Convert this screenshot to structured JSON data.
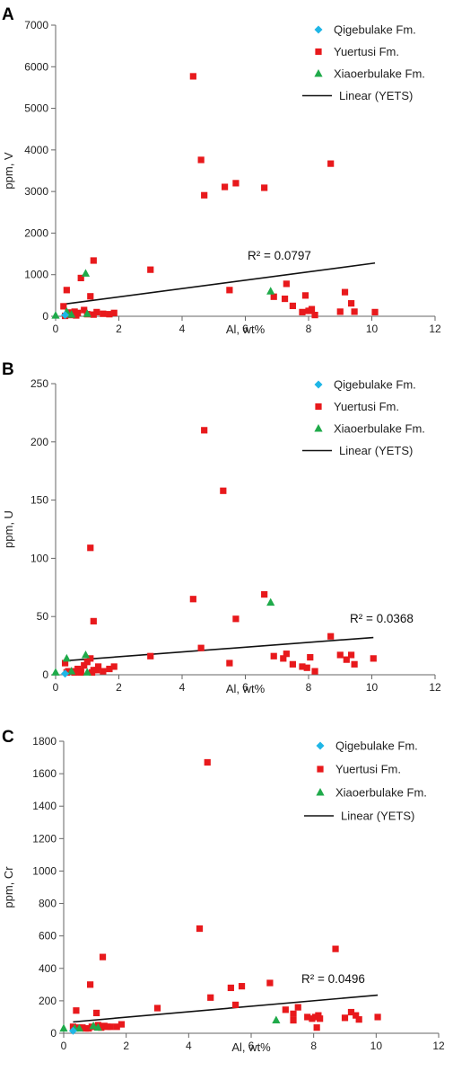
{
  "colors": {
    "qigebulake": "#1fb6e6",
    "yuertusi": "#e8191c",
    "xiaoerbulake": "#1faa4a",
    "trendline": "#111111",
    "axis": "#666666"
  },
  "chart_data": [
    {
      "panel": "A",
      "type": "scatter",
      "xlabel": "Al, wt%",
      "ylabel": "ppm, V",
      "xlim": [
        0,
        12
      ],
      "ylim": [
        0,
        7000
      ],
      "xticks": [
        0,
        2,
        4,
        6,
        8,
        10,
        12
      ],
      "yticks": [
        0,
        1000,
        2000,
        3000,
        4000,
        5000,
        6000,
        7000
      ],
      "grid": false,
      "legend_position": "top-right",
      "legend": [
        "Qigebulake Fm.",
        "Yuertusi Fm.",
        "Xiaoerbulake Fm.",
        "Linear (YETS)"
      ],
      "r2_label": "R² = 0.0797",
      "trendline": {
        "x": [
          0.25,
          10.1
        ],
        "y": [
          290,
          1280
        ]
      },
      "series": [
        {
          "name": "Qigebulake Fm.",
          "marker": "diamond",
          "x": [
            0.3
          ],
          "y": [
            30
          ]
        },
        {
          "name": "Yuertusi Fm.",
          "marker": "square",
          "x": [
            4.35,
            4.6,
            4.7,
            5.35,
            5.7,
            6.6,
            8.7,
            1.2,
            3.0,
            0.35,
            0.25,
            0.4,
            1.1,
            0.8,
            0.5,
            0.6,
            0.7,
            0.9,
            1.0,
            1.3,
            1.5,
            1.7,
            1.85,
            5.5,
            6.9,
            7.3,
            7.5,
            7.8,
            7.9,
            8.0,
            8.1,
            8.2,
            9.0,
            9.15,
            9.35,
            9.45,
            10.1,
            7.25,
            0.45,
            1.2,
            0.65,
            0.3
          ],
          "y": [
            5770,
            3760,
            2910,
            3110,
            3200,
            3090,
            3670,
            1340,
            1120,
            630,
            240,
            90,
            480,
            920,
            60,
            110,
            80,
            150,
            50,
            100,
            60,
            50,
            80,
            630,
            470,
            780,
            250,
            100,
            500,
            130,
            170,
            30,
            110,
            580,
            310,
            110,
            100,
            420,
            30,
            40,
            20,
            10
          ]
        },
        {
          "name": "Xiaoerbulake Fm.",
          "marker": "triangle",
          "x": [
            0.0,
            0.35,
            0.95,
            6.8,
            0.5,
            1.0
          ],
          "y": [
            20,
            110,
            1030,
            600,
            40,
            60
          ]
        }
      ]
    },
    {
      "panel": "B",
      "type": "scatter",
      "xlabel": "Al, wt%",
      "ylabel": "ppm, U",
      "xlim": [
        0,
        12
      ],
      "ylim": [
        0,
        250
      ],
      "xticks": [
        0,
        2,
        4,
        6,
        8,
        10,
        12
      ],
      "yticks": [
        0,
        50,
        100,
        150,
        200,
        250
      ],
      "grid": false,
      "legend_position": "top-right",
      "legend": [
        "Qigebulake Fm.",
        "Yuertusi Fm.",
        "Xiaoerbulake Fm.",
        "Linear (YETS)"
      ],
      "r2_label": "R² = 0.0368",
      "trendline": {
        "x": [
          0.3,
          10.05
        ],
        "y": [
          12,
          32
        ]
      },
      "series": [
        {
          "name": "Qigebulake Fm.",
          "marker": "diamond",
          "x": [
            0.3
          ],
          "y": [
            1
          ]
        },
        {
          "name": "Yuertusi Fm.",
          "marker": "square",
          "x": [
            4.7,
            5.3,
            1.1,
            4.35,
            6.6,
            5.7,
            1.2,
            8.7,
            4.6,
            3.0,
            0.3,
            0.5,
            0.7,
            0.9,
            1.0,
            1.2,
            1.35,
            1.5,
            1.7,
            1.85,
            0.4,
            0.6,
            0.8,
            1.1,
            1.3,
            5.5,
            6.9,
            7.3,
            7.5,
            7.8,
            7.95,
            8.05,
            8.2,
            9.0,
            9.2,
            9.35,
            9.45,
            10.05,
            7.2,
            0.35,
            0.8,
            1.15
          ],
          "y": [
            210,
            158,
            109,
            65,
            69,
            48,
            46,
            33,
            23,
            16,
            10,
            3,
            5,
            8,
            11,
            4,
            7,
            3,
            5,
            7,
            3,
            2,
            3,
            14,
            4,
            10,
            16,
            18,
            9,
            7,
            6,
            15,
            3,
            17,
            13,
            17,
            9,
            14,
            14,
            2,
            2,
            2
          ]
        },
        {
          "name": "Xiaoerbulake Fm.",
          "marker": "triangle",
          "x": [
            0.0,
            0.35,
            0.95,
            6.8,
            0.5,
            1.0
          ],
          "y": [
            2,
            14,
            17,
            62,
            3,
            2
          ]
        }
      ]
    },
    {
      "panel": "C",
      "type": "scatter",
      "xlabel": "Al, wt%",
      "ylabel": "ppm, Cr",
      "xlim": [
        0,
        12
      ],
      "ylim": [
        0,
        1800
      ],
      "xticks": [
        0,
        2,
        4,
        6,
        8,
        10,
        12
      ],
      "yticks": [
        0,
        200,
        400,
        600,
        800,
        1000,
        1200,
        1400,
        1600,
        1800
      ],
      "grid": false,
      "legend_position": "top-right",
      "legend": [
        "Qigebulake Fm.",
        "Yuertusi Fm.",
        "Xiaoerbulake Fm.",
        "Linear (YETS)"
      ],
      "r2_label": "R² = 0.0496",
      "trendline": {
        "x": [
          0.3,
          10.05
        ],
        "y": [
          70,
          235
        ]
      },
      "series": [
        {
          "name": "Qigebulake Fm.",
          "marker": "diamond",
          "x": [
            0.3
          ],
          "y": [
            15
          ]
        },
        {
          "name": "Yuertusi Fm.",
          "marker": "square",
          "x": [
            4.6,
            4.35,
            8.7,
            1.25,
            0.85,
            6.6,
            5.7,
            5.35,
            4.7,
            3.0,
            5.5,
            0.4,
            1.05,
            0.3,
            0.5,
            0.7,
            0.9,
            1.1,
            1.3,
            1.5,
            1.7,
            1.85,
            0.6,
            0.8,
            1.2,
            1.4,
            7.1,
            7.35,
            7.5,
            7.8,
            7.95,
            8.05,
            8.15,
            8.2,
            9.0,
            9.2,
            9.35,
            9.45,
            10.05,
            7.35,
            8.1
          ],
          "y": [
            1670,
            645,
            520,
            470,
            300,
            310,
            290,
            280,
            220,
            155,
            175,
            140,
            125,
            40,
            35,
            30,
            40,
            50,
            45,
            40,
            40,
            55,
            35,
            30,
            35,
            40,
            145,
            120,
            160,
            100,
            90,
            100,
            110,
            90,
            95,
            130,
            110,
            85,
            100,
            80,
            35
          ]
        },
        {
          "name": "Xiaoerbulake Fm.",
          "marker": "triangle",
          "x": [
            0.0,
            0.35,
            0.95,
            6.8,
            0.5,
            1.1
          ],
          "y": [
            30,
            30,
            45,
            80,
            30,
            35
          ]
        }
      ]
    }
  ]
}
